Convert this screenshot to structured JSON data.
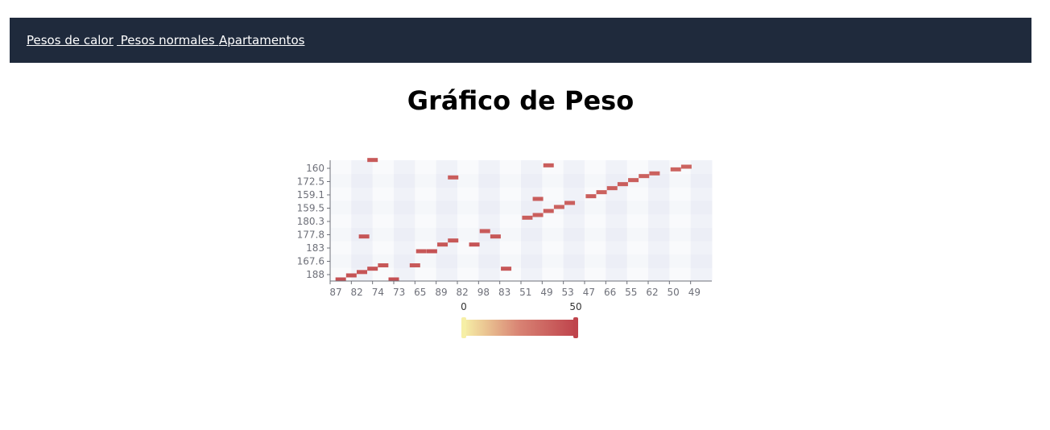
{
  "nav": {
    "items": [
      {
        "label": "Pesos de calor"
      },
      {
        "label": " Pesos normales "
      },
      {
        "label": "Apartamentos"
      }
    ]
  },
  "page": {
    "title": "Gráfico de Peso"
  },
  "chart_data": {
    "type": "heatmap",
    "title": "Gráfico de Peso",
    "x_categories": [
      "87",
      "82",
      "74",
      "73",
      "65",
      "89",
      "82",
      "98",
      "83",
      "51",
      "49",
      "53",
      "47",
      "66",
      "55",
      "62",
      "50",
      "49"
    ],
    "y_categories": [
      "188",
      "167.6",
      "183",
      "177.8",
      "180.3",
      "159.5",
      "159.1",
      "172.5",
      "160"
    ],
    "visual_map": {
      "min": 0,
      "max": 50,
      "colors": [
        "#f6efa6",
        "#d88273",
        "#bf444c"
      ]
    },
    "cells": [
      {
        "x": 0.5,
        "y": 0.0,
        "value": 45
      },
      {
        "x": 1.0,
        "y": 0.3,
        "value": 44
      },
      {
        "x": 1.5,
        "y": 0.55,
        "value": 43
      },
      {
        "x": 2.0,
        "y": 0.8,
        "value": 43
      },
      {
        "x": 2.5,
        "y": 1.05,
        "value": 42
      },
      {
        "x": 3.0,
        "y": 0.0,
        "value": 45
      },
      {
        "x": 4.0,
        "y": 1.05,
        "value": 41
      },
      {
        "x": 4.3,
        "y": 2.1,
        "value": 42
      },
      {
        "x": 4.8,
        "y": 2.1,
        "value": 44
      },
      {
        "x": 5.3,
        "y": 2.6,
        "value": 42
      },
      {
        "x": 5.8,
        "y": 2.9,
        "value": 42
      },
      {
        "x": 6.8,
        "y": 2.6,
        "value": 43
      },
      {
        "x": 7.3,
        "y": 3.6,
        "value": 41
      },
      {
        "x": 7.8,
        "y": 3.2,
        "value": 42
      },
      {
        "x": 8.3,
        "y": 0.8,
        "value": 42
      },
      {
        "x": 1.6,
        "y": 3.2,
        "value": 43
      },
      {
        "x": 2.0,
        "y": 8.9,
        "value": 41
      },
      {
        "x": 5.8,
        "y": 7.6,
        "value": 40
      },
      {
        "x": 9.3,
        "y": 4.6,
        "value": 40
      },
      {
        "x": 9.8,
        "y": 4.8,
        "value": 39
      },
      {
        "x": 10.3,
        "y": 5.1,
        "value": 40
      },
      {
        "x": 10.8,
        "y": 5.4,
        "value": 38
      },
      {
        "x": 11.3,
        "y": 5.7,
        "value": 39
      },
      {
        "x": 9.8,
        "y": 6.0,
        "value": 40
      },
      {
        "x": 12.3,
        "y": 6.2,
        "value": 39
      },
      {
        "x": 12.8,
        "y": 6.5,
        "value": 38
      },
      {
        "x": 13.3,
        "y": 6.8,
        "value": 39
      },
      {
        "x": 13.8,
        "y": 7.1,
        "value": 40
      },
      {
        "x": 14.3,
        "y": 7.4,
        "value": 39
      },
      {
        "x": 14.8,
        "y": 7.7,
        "value": 38
      },
      {
        "x": 15.3,
        "y": 7.9,
        "value": 38
      },
      {
        "x": 16.3,
        "y": 8.2,
        "value": 37
      },
      {
        "x": 16.8,
        "y": 8.4,
        "value": 37
      },
      {
        "x": 10.3,
        "y": 8.5,
        "value": 40
      }
    ]
  }
}
